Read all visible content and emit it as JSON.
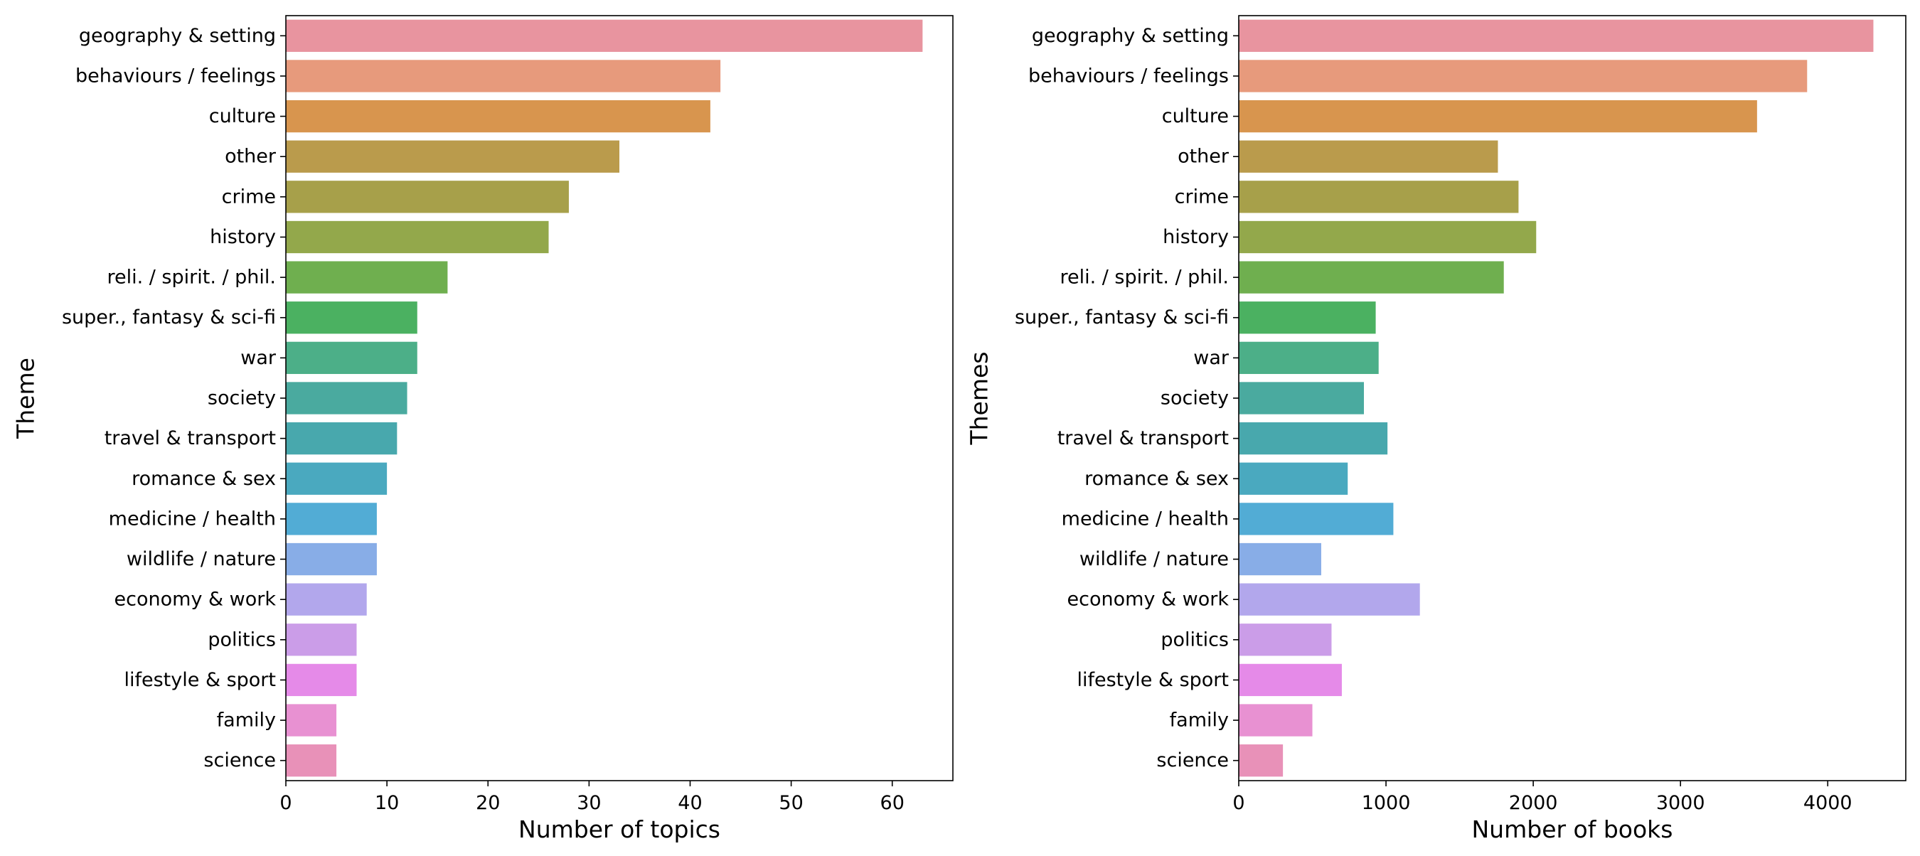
{
  "chart_data": [
    {
      "type": "bar",
      "orientation": "horizontal",
      "categories": [
        "geography & setting",
        "behaviours / feelings",
        "culture",
        "other",
        "crime",
        "history",
        "reli. / spirit. / phil.",
        "super., fantasy & sci-fi",
        "war",
        "society",
        "travel & transport",
        "romance & sex",
        "medicine / health",
        "wildlife / nature",
        "economy & work",
        "politics",
        "lifestyle & sport",
        "family",
        "science"
      ],
      "values": [
        63,
        43,
        42,
        33,
        28,
        26,
        16,
        13,
        13,
        12,
        11,
        10,
        9,
        9,
        8,
        7,
        7,
        5,
        5
      ],
      "xlabel": "Number of topics",
      "ylabel": "Theme",
      "xlim": [
        0,
        66
      ],
      "xticks": [
        0,
        10,
        20,
        30,
        40,
        50,
        60
      ],
      "xtick_labels": [
        "0",
        "10",
        "20",
        "30",
        "40",
        "50",
        "60"
      ],
      "grid": false
    },
    {
      "type": "bar",
      "orientation": "horizontal",
      "categories": [
        "geography & setting",
        "behaviours / feelings",
        "culture",
        "other",
        "crime",
        "history",
        "reli. / spirit. / phil.",
        "super., fantasy & sci-fi",
        "war",
        "society",
        "travel & transport",
        "romance & sex",
        "medicine / health",
        "wildlife / nature",
        "economy & work",
        "politics",
        "lifestyle & sport",
        "family",
        "science"
      ],
      "values": [
        4310,
        3860,
        3520,
        1760,
        1900,
        2020,
        1800,
        930,
        950,
        850,
        1010,
        740,
        1050,
        560,
        1230,
        630,
        700,
        500,
        300
      ],
      "xlabel": "Number of books",
      "ylabel": "Themes",
      "xlim": [
        0,
        4530
      ],
      "xticks": [
        0,
        1000,
        2000,
        3000,
        4000
      ],
      "xtick_labels": [
        "0",
        "1000",
        "2000",
        "3000",
        "4000"
      ],
      "grid": false
    }
  ],
  "palette": [
    "#e8949f",
    "#e79a7c",
    "#d8954e",
    "#ba9b4c",
    "#a7a04a",
    "#93a84b",
    "#6faf4f",
    "#4bb161",
    "#4caf88",
    "#4aaa9f",
    "#48a8ad",
    "#4aa9bf",
    "#52acd5",
    "#88ade7",
    "#b2a7ec",
    "#cb9de8",
    "#e58ae8",
    "#e891d2",
    "#e891b8"
  ]
}
